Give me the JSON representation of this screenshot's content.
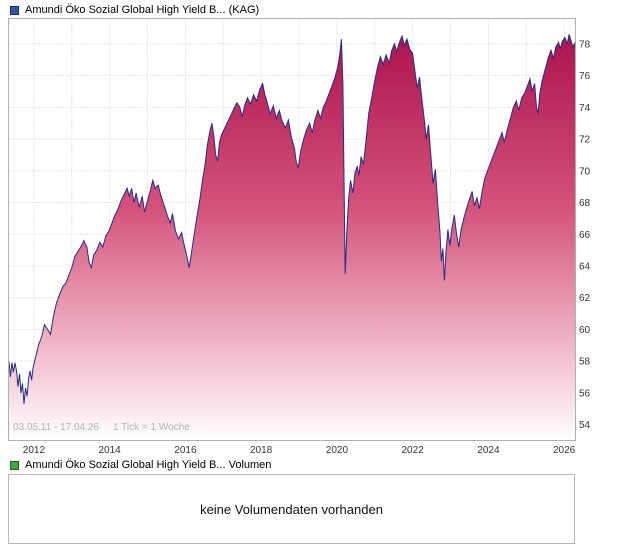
{
  "header": {
    "title": "Amundi Öko Sozial Global High Yield B... (KAG)",
    "icon_color": "#2f55a4"
  },
  "volume": {
    "title": "Amundi Öko Sozial Global High Yield B... Volumen",
    "icon_color": "#3fa845",
    "message": "keine Volumendaten vorhanden"
  },
  "chart_data": {
    "type": "area",
    "title": "Amundi Öko Sozial Global High Yield B... (KAG)",
    "period_label": "03.05.11 - 17.04.26",
    "tick_label": "1 Tick = 1 Woche",
    "xlabel": "",
    "ylabel": "",
    "xlim": [
      2011.33,
      2026.3
    ],
    "ylim": [
      53.0,
      79.6
    ],
    "x_gridlines": [
      2012,
      2013,
      2014,
      2015,
      2016,
      2017,
      2018,
      2019,
      2020,
      2021,
      2022,
      2023,
      2024,
      2025,
      2026
    ],
    "x_ticks": [
      2012,
      2014,
      2016,
      2018,
      2020,
      2022,
      2024,
      2026
    ],
    "y_ticks": [
      54,
      56,
      58,
      60,
      62,
      64,
      66,
      68,
      70,
      72,
      74,
      76,
      78
    ],
    "grid": true,
    "legend_position": "top-left",
    "colors": {
      "line": "#262c80",
      "grid": "#cccccc",
      "border": "#b0b0b0",
      "fill_stops": [
        [
          "0",
          "#a80d4b"
        ],
        [
          "0.45",
          "#d4537b"
        ],
        [
          "0.8",
          "#f2bfce"
        ],
        [
          "1",
          "#ffffff"
        ]
      ]
    },
    "series": [
      {
        "name": "Amundi Öko Sozial Global High Yield B... (KAG)",
        "points": [
          [
            2011.34,
            58.0
          ],
          [
            2011.38,
            57.0
          ],
          [
            2011.42,
            57.9
          ],
          [
            2011.46,
            57.3
          ],
          [
            2011.5,
            57.9
          ],
          [
            2011.54,
            57.4
          ],
          [
            2011.58,
            56.4
          ],
          [
            2011.62,
            57.2
          ],
          [
            2011.66,
            56.0
          ],
          [
            2011.7,
            56.6
          ],
          [
            2011.74,
            55.3
          ],
          [
            2011.78,
            56.3
          ],
          [
            2011.82,
            55.8
          ],
          [
            2011.86,
            56.9
          ],
          [
            2011.9,
            57.4
          ],
          [
            2011.94,
            56.8
          ],
          [
            2011.98,
            57.6
          ],
          [
            2012.05,
            58.3
          ],
          [
            2012.12,
            59.0
          ],
          [
            2012.2,
            59.5
          ],
          [
            2012.28,
            60.3
          ],
          [
            2012.36,
            60.0
          ],
          [
            2012.44,
            59.7
          ],
          [
            2012.52,
            60.9
          ],
          [
            2012.6,
            61.7
          ],
          [
            2012.68,
            62.2
          ],
          [
            2012.76,
            62.7
          ],
          [
            2012.84,
            62.9
          ],
          [
            2012.92,
            63.4
          ],
          [
            2013.0,
            63.9
          ],
          [
            2013.08,
            64.6
          ],
          [
            2013.16,
            64.9
          ],
          [
            2013.24,
            65.2
          ],
          [
            2013.32,
            65.6
          ],
          [
            2013.4,
            65.2
          ],
          [
            2013.46,
            64.2
          ],
          [
            2013.52,
            63.9
          ],
          [
            2013.58,
            64.7
          ],
          [
            2013.66,
            65.0
          ],
          [
            2013.74,
            65.5
          ],
          [
            2013.82,
            65.2
          ],
          [
            2013.9,
            65.9
          ],
          [
            2013.98,
            66.2
          ],
          [
            2014.06,
            66.7
          ],
          [
            2014.14,
            67.2
          ],
          [
            2014.22,
            67.6
          ],
          [
            2014.3,
            68.1
          ],
          [
            2014.38,
            68.5
          ],
          [
            2014.46,
            68.9
          ],
          [
            2014.52,
            68.4
          ],
          [
            2014.58,
            68.9
          ],
          [
            2014.64,
            68.0
          ],
          [
            2014.7,
            68.6
          ],
          [
            2014.78,
            67.7
          ],
          [
            2014.86,
            68.4
          ],
          [
            2014.92,
            67.4
          ],
          [
            2015.0,
            68.1
          ],
          [
            2015.08,
            68.8
          ],
          [
            2015.14,
            69.4
          ],
          [
            2015.2,
            68.9
          ],
          [
            2015.28,
            69.1
          ],
          [
            2015.36,
            68.4
          ],
          [
            2015.44,
            67.8
          ],
          [
            2015.52,
            67.2
          ],
          [
            2015.6,
            66.7
          ],
          [
            2015.66,
            67.3
          ],
          [
            2015.74,
            66.2
          ],
          [
            2015.82,
            65.7
          ],
          [
            2015.9,
            66.1
          ],
          [
            2015.96,
            65.4
          ],
          [
            2016.04,
            64.6
          ],
          [
            2016.1,
            63.9
          ],
          [
            2016.16,
            64.8
          ],
          [
            2016.22,
            65.8
          ],
          [
            2016.3,
            67.0
          ],
          [
            2016.38,
            68.2
          ],
          [
            2016.46,
            69.5
          ],
          [
            2016.52,
            70.4
          ],
          [
            2016.58,
            71.6
          ],
          [
            2016.64,
            72.4
          ],
          [
            2016.7,
            73.0
          ],
          [
            2016.75,
            72.2
          ],
          [
            2016.8,
            71.0
          ],
          [
            2016.85,
            70.6
          ],
          [
            2016.9,
            71.8
          ],
          [
            2016.96,
            72.3
          ],
          [
            2017.04,
            72.7
          ],
          [
            2017.12,
            73.1
          ],
          [
            2017.2,
            73.5
          ],
          [
            2017.28,
            73.9
          ],
          [
            2017.36,
            74.3
          ],
          [
            2017.44,
            74.0
          ],
          [
            2017.5,
            73.4
          ],
          [
            2017.56,
            74.1
          ],
          [
            2017.64,
            74.6
          ],
          [
            2017.72,
            74.2
          ],
          [
            2017.8,
            74.8
          ],
          [
            2017.88,
            74.4
          ],
          [
            2017.96,
            75.1
          ],
          [
            2018.04,
            75.5
          ],
          [
            2018.1,
            74.8
          ],
          [
            2018.16,
            74.3
          ],
          [
            2018.24,
            73.6
          ],
          [
            2018.32,
            74.1
          ],
          [
            2018.4,
            73.3
          ],
          [
            2018.48,
            73.8
          ],
          [
            2018.56,
            73.1
          ],
          [
            2018.64,
            72.7
          ],
          [
            2018.72,
            73.2
          ],
          [
            2018.8,
            72.1
          ],
          [
            2018.88,
            71.4
          ],
          [
            2018.93,
            70.5
          ],
          [
            2018.98,
            70.2
          ],
          [
            2019.05,
            71.3
          ],
          [
            2019.12,
            72.0
          ],
          [
            2019.2,
            72.6
          ],
          [
            2019.28,
            73.0
          ],
          [
            2019.35,
            72.4
          ],
          [
            2019.42,
            73.2
          ],
          [
            2019.5,
            73.8
          ],
          [
            2019.57,
            73.3
          ],
          [
            2019.64,
            74.0
          ],
          [
            2019.72,
            74.4
          ],
          [
            2019.8,
            74.9
          ],
          [
            2019.88,
            75.4
          ],
          [
            2019.95,
            75.9
          ],
          [
            2020.02,
            76.5
          ],
          [
            2020.08,
            77.4
          ],
          [
            2020.12,
            78.3
          ],
          [
            2020.16,
            75.5
          ],
          [
            2020.19,
            69.0
          ],
          [
            2020.22,
            63.5
          ],
          [
            2020.26,
            66.0
          ],
          [
            2020.31,
            68.2
          ],
          [
            2020.36,
            69.4
          ],
          [
            2020.42,
            68.6
          ],
          [
            2020.48,
            69.9
          ],
          [
            2020.54,
            70.3
          ],
          [
            2020.58,
            69.7
          ],
          [
            2020.64,
            70.9
          ],
          [
            2020.7,
            70.4
          ],
          [
            2020.77,
            71.9
          ],
          [
            2020.84,
            73.6
          ],
          [
            2020.92,
            74.6
          ],
          [
            2021.0,
            75.7
          ],
          [
            2021.08,
            76.6
          ],
          [
            2021.15,
            77.2
          ],
          [
            2021.22,
            76.7
          ],
          [
            2021.3,
            77.3
          ],
          [
            2021.38,
            76.8
          ],
          [
            2021.45,
            77.6
          ],
          [
            2021.52,
            78.0
          ],
          [
            2021.58,
            77.5
          ],
          [
            2021.65,
            78.1
          ],
          [
            2021.72,
            78.5
          ],
          [
            2021.78,
            77.9
          ],
          [
            2021.85,
            78.3
          ],
          [
            2021.92,
            77.7
          ],
          [
            2022.0,
            77.4
          ],
          [
            2022.06,
            76.3
          ],
          [
            2022.12,
            75.2
          ],
          [
            2022.18,
            75.9
          ],
          [
            2022.24,
            74.6
          ],
          [
            2022.3,
            73.4
          ],
          [
            2022.36,
            72.0
          ],
          [
            2022.42,
            72.9
          ],
          [
            2022.48,
            71.0
          ],
          [
            2022.54,
            69.2
          ],
          [
            2022.6,
            70.1
          ],
          [
            2022.66,
            68.0
          ],
          [
            2022.72,
            66.2
          ],
          [
            2022.76,
            64.3
          ],
          [
            2022.8,
            65.1
          ],
          [
            2022.84,
            63.1
          ],
          [
            2022.88,
            64.9
          ],
          [
            2022.93,
            66.3
          ],
          [
            2022.98,
            65.3
          ],
          [
            2023.04,
            66.4
          ],
          [
            2023.1,
            67.2
          ],
          [
            2023.16,
            66.0
          ],
          [
            2023.22,
            65.2
          ],
          [
            2023.28,
            66.3
          ],
          [
            2023.35,
            67.0
          ],
          [
            2023.42,
            67.6
          ],
          [
            2023.5,
            68.2
          ],
          [
            2023.57,
            68.7
          ],
          [
            2023.63,
            67.8
          ],
          [
            2023.7,
            68.3
          ],
          [
            2023.76,
            67.6
          ],
          [
            2023.83,
            68.6
          ],
          [
            2023.9,
            69.5
          ],
          [
            2023.96,
            69.9
          ],
          [
            2024.04,
            70.4
          ],
          [
            2024.12,
            70.9
          ],
          [
            2024.2,
            71.4
          ],
          [
            2024.28,
            71.9
          ],
          [
            2024.36,
            72.4
          ],
          [
            2024.42,
            71.8
          ],
          [
            2024.5,
            72.6
          ],
          [
            2024.58,
            73.3
          ],
          [
            2024.66,
            74.0
          ],
          [
            2024.74,
            74.4
          ],
          [
            2024.8,
            73.8
          ],
          [
            2024.88,
            74.6
          ],
          [
            2024.96,
            74.9
          ],
          [
            2025.04,
            75.4
          ],
          [
            2025.1,
            75.8
          ],
          [
            2025.16,
            75.0
          ],
          [
            2025.22,
            75.5
          ],
          [
            2025.27,
            74.0
          ],
          [
            2025.31,
            73.6
          ],
          [
            2025.36,
            74.9
          ],
          [
            2025.42,
            75.7
          ],
          [
            2025.5,
            76.4
          ],
          [
            2025.58,
            77.1
          ],
          [
            2025.65,
            77.6
          ],
          [
            2025.72,
            77.1
          ],
          [
            2025.78,
            77.8
          ],
          [
            2025.85,
            78.1
          ],
          [
            2025.9,
            77.7
          ],
          [
            2025.96,
            78.2
          ],
          [
            2026.02,
            78.4
          ],
          [
            2026.08,
            78.0
          ],
          [
            2026.13,
            78.6
          ],
          [
            2026.18,
            78.2
          ],
          [
            2026.23,
            77.8
          ],
          [
            2026.29,
            78.1
          ]
        ]
      }
    ]
  }
}
